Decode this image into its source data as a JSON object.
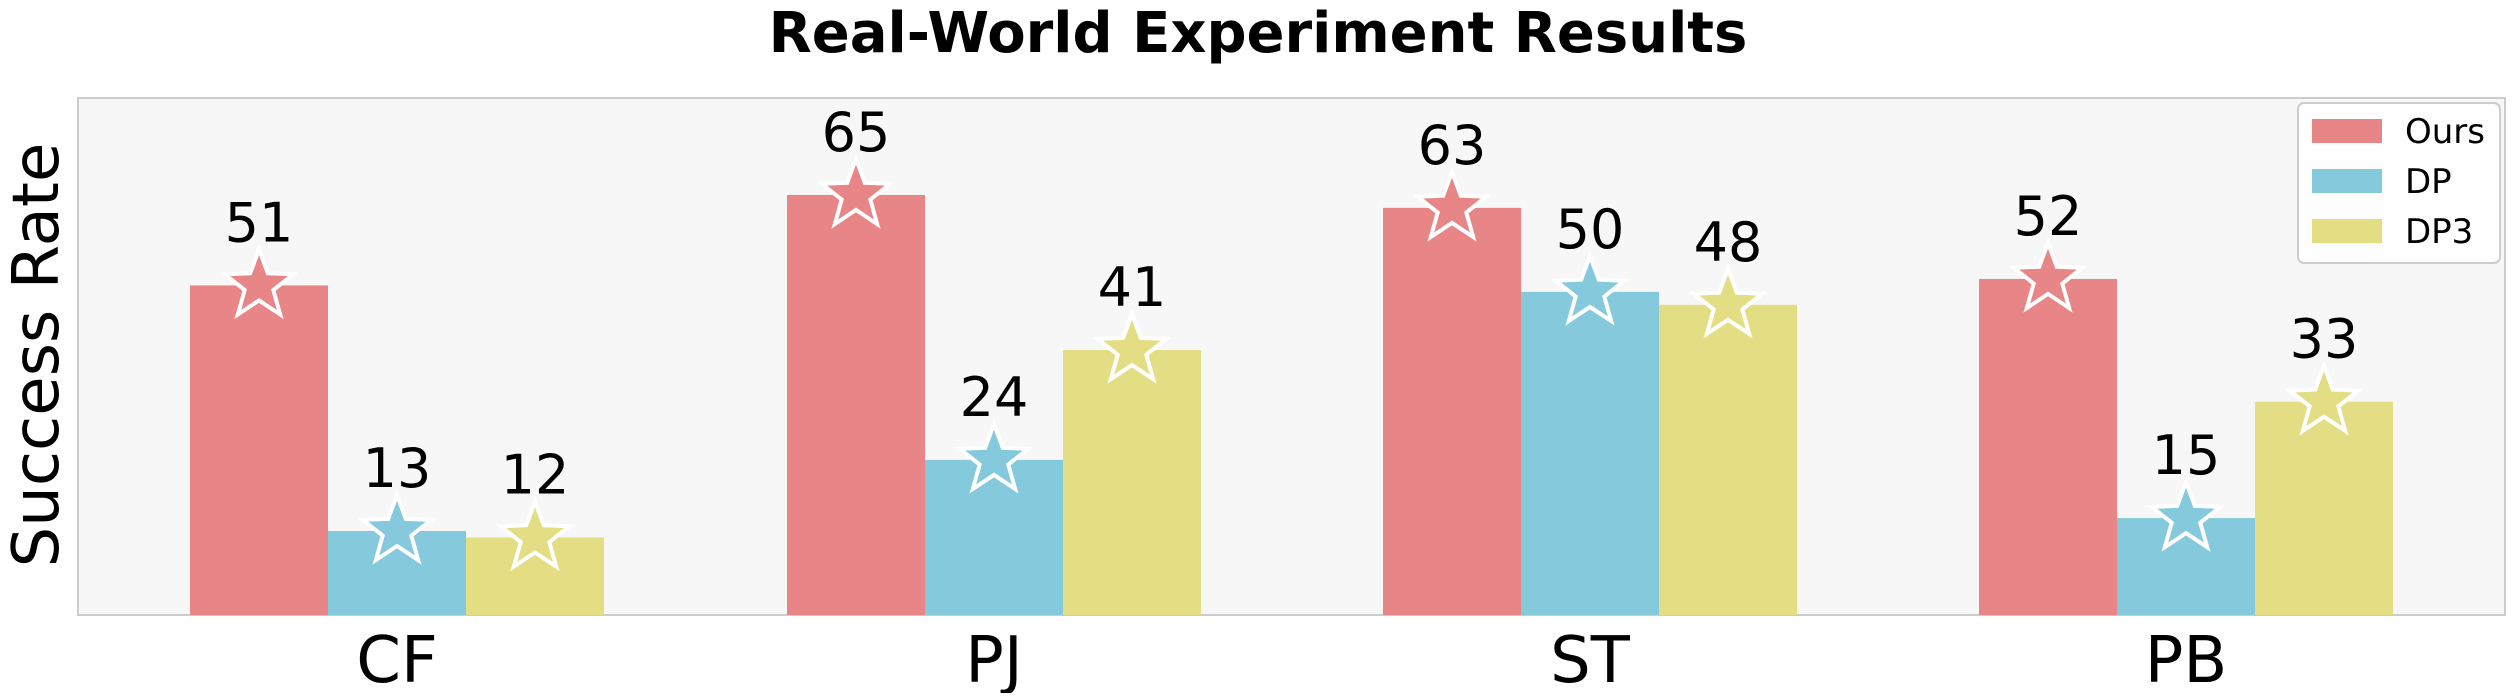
{
  "chart_data": {
    "type": "bar",
    "title": "Real-World Experiment Results",
    "xlabel": "",
    "ylabel": "Success Rate",
    "categories": [
      "CF",
      "PJ",
      "ST",
      "PB"
    ],
    "series": [
      {
        "name": "Ours",
        "color": "#e78587",
        "values": [
          51,
          65,
          63,
          52
        ]
      },
      {
        "name": "DP",
        "color": "#84c9dc",
        "values": [
          13,
          24,
          50,
          15
        ]
      },
      {
        "name": "DP3",
        "color": "#e3dd84",
        "values": [
          12,
          41,
          48,
          33
        ]
      }
    ],
    "ylim": [
      0,
      80
    ],
    "grid": false,
    "legend_position": "top-right",
    "marker": "star",
    "background": "#f7f7f7",
    "axis_color": "#cccccc"
  }
}
